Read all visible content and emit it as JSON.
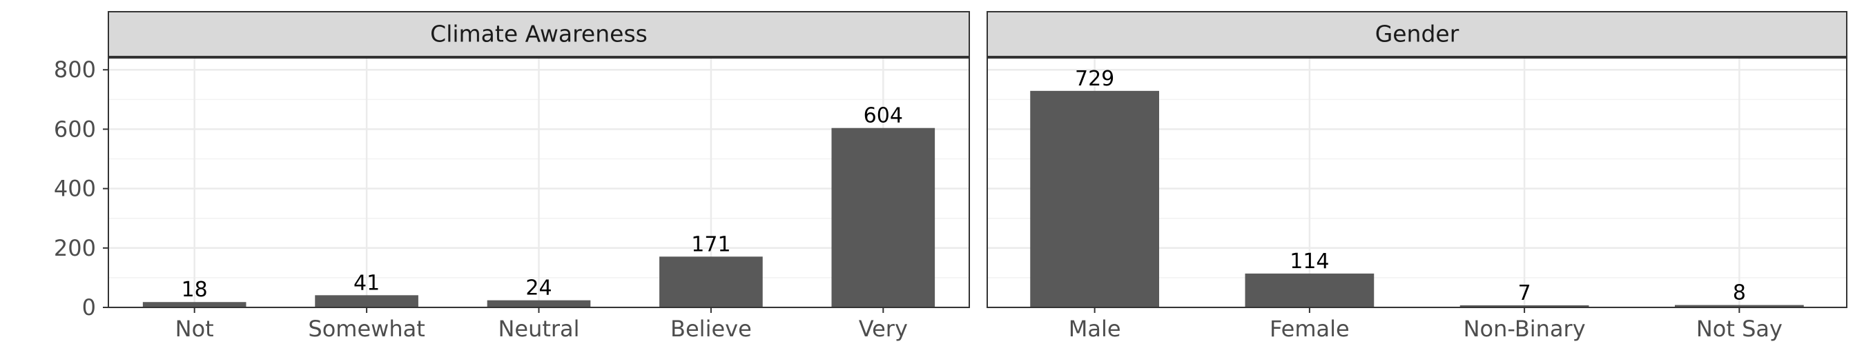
{
  "chart_data": [
    {
      "type": "bar",
      "title": "Climate Awareness",
      "categories": [
        "Not",
        "Somewhat",
        "Neutral",
        "Believe",
        "Very"
      ],
      "values": [
        18,
        41,
        24,
        171,
        604
      ],
      "ylim": [
        0,
        840
      ],
      "yticks": [
        0,
        200,
        400,
        600,
        800
      ],
      "grid": true,
      "bar_color": "#595959"
    },
    {
      "type": "bar",
      "title": "Gender",
      "categories": [
        "Male",
        "Female",
        "Non-Binary",
        "Not Say"
      ],
      "values": [
        729,
        114,
        7,
        8
      ],
      "ylim": [
        0,
        840
      ],
      "yticks": [
        0,
        200,
        400,
        600,
        800
      ],
      "grid": true,
      "bar_color": "#595959"
    }
  ]
}
